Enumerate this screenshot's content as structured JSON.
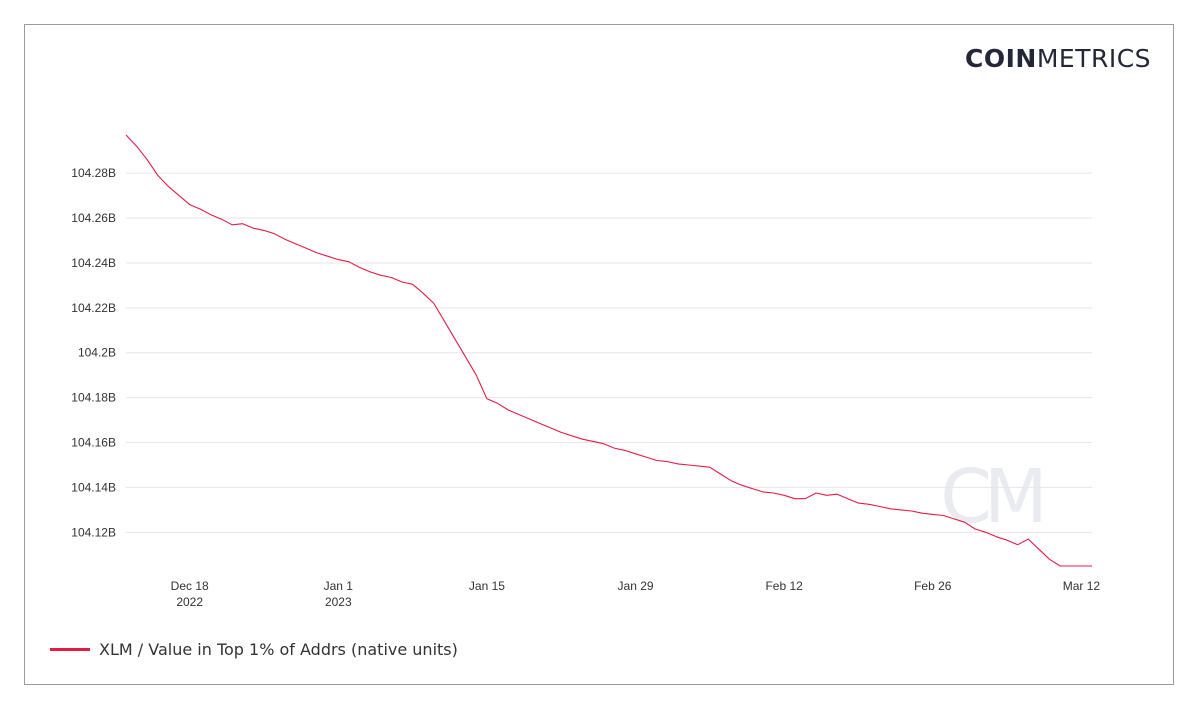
{
  "brand": {
    "logo_bold": "COIN",
    "logo_light": "METRICS",
    "watermark": "CM"
  },
  "legend": {
    "label": "XLM / Value in Top 1% of Addrs (native units)",
    "color": "#e41b47"
  },
  "chart_data": {
    "type": "line",
    "title": "",
    "xlabel": "",
    "ylabel": "",
    "ylim": [
      104.105,
      104.297
    ],
    "y_ticks": [
      {
        "value": 104.12,
        "label": "104.12B"
      },
      {
        "value": 104.14,
        "label": "104.14B"
      },
      {
        "value": 104.16,
        "label": "104.16B"
      },
      {
        "value": 104.18,
        "label": "104.18B"
      },
      {
        "value": 104.2,
        "label": "104.2B"
      },
      {
        "value": 104.22,
        "label": "104.22B"
      },
      {
        "value": 104.24,
        "label": "104.24B"
      },
      {
        "value": 104.26,
        "label": "104.26B"
      },
      {
        "value": 104.28,
        "label": "104.28B"
      }
    ],
    "x_ticks": [
      {
        "date": "2022-12-18",
        "label": "Dec 18",
        "sublabel": "2022"
      },
      {
        "date": "2023-01-01",
        "label": "Jan 1",
        "sublabel": "2023"
      },
      {
        "date": "2023-01-15",
        "label": "Jan 15",
        "sublabel": ""
      },
      {
        "date": "2023-01-29",
        "label": "Jan 29",
        "sublabel": ""
      },
      {
        "date": "2023-02-12",
        "label": "Feb 12",
        "sublabel": ""
      },
      {
        "date": "2023-02-26",
        "label": "Feb 26",
        "sublabel": ""
      },
      {
        "date": "2023-03-12",
        "label": "Mar 12",
        "sublabel": ""
      }
    ],
    "grid": true,
    "legend_position": "bottom-left",
    "series": [
      {
        "name": "XLM / Value in Top 1% of Addrs (native units)",
        "unit": "B",
        "color": "#e41b47",
        "x": [
          "2022-12-12",
          "2022-12-13",
          "2022-12-14",
          "2022-12-15",
          "2022-12-16",
          "2022-12-17",
          "2022-12-18",
          "2022-12-19",
          "2022-12-20",
          "2022-12-21",
          "2022-12-22",
          "2022-12-23",
          "2022-12-24",
          "2022-12-25",
          "2022-12-26",
          "2022-12-27",
          "2022-12-28",
          "2022-12-29",
          "2022-12-30",
          "2022-12-31",
          "2023-01-01",
          "2023-01-02",
          "2023-01-03",
          "2023-01-04",
          "2023-01-05",
          "2023-01-06",
          "2023-01-07",
          "2023-01-08",
          "2023-01-09",
          "2023-01-10",
          "2023-01-11",
          "2023-01-12",
          "2023-01-13",
          "2023-01-14",
          "2023-01-15",
          "2023-01-16",
          "2023-01-17",
          "2023-01-18",
          "2023-01-19",
          "2023-01-20",
          "2023-01-21",
          "2023-01-22",
          "2023-01-23",
          "2023-01-24",
          "2023-01-25",
          "2023-01-26",
          "2023-01-27",
          "2023-01-28",
          "2023-01-29",
          "2023-01-30",
          "2023-01-31",
          "2023-02-01",
          "2023-02-02",
          "2023-02-03",
          "2023-02-04",
          "2023-02-05",
          "2023-02-06",
          "2023-02-07",
          "2023-02-08",
          "2023-02-09",
          "2023-02-10",
          "2023-02-11",
          "2023-02-12",
          "2023-02-13",
          "2023-02-14",
          "2023-02-15",
          "2023-02-16",
          "2023-02-17",
          "2023-02-18",
          "2023-02-19",
          "2023-02-20",
          "2023-02-21",
          "2023-02-22",
          "2023-02-23",
          "2023-02-24",
          "2023-02-25",
          "2023-02-26",
          "2023-02-27",
          "2023-02-28",
          "2023-03-01",
          "2023-03-02",
          "2023-03-03",
          "2023-03-04",
          "2023-03-05",
          "2023-03-06",
          "2023-03-07",
          "2023-03-08",
          "2023-03-09",
          "2023-03-10",
          "2023-03-11",
          "2023-03-12",
          "2023-03-13"
        ],
        "values": [
          104.297,
          104.292,
          104.286,
          104.279,
          104.274,
          104.27,
          104.266,
          104.264,
          104.2615,
          104.2595,
          104.257,
          104.2575,
          104.2555,
          104.2545,
          104.253,
          104.2505,
          104.2485,
          104.2465,
          104.2445,
          104.243,
          104.2415,
          104.2405,
          104.238,
          104.236,
          104.2345,
          104.2335,
          104.2315,
          104.2305,
          104.2265,
          104.222,
          104.214,
          104.206,
          104.198,
          104.19,
          104.1795,
          104.1775,
          104.1745,
          104.1725,
          104.1705,
          104.1685,
          104.1665,
          104.1645,
          104.163,
          104.1615,
          104.1605,
          104.1595,
          104.1575,
          104.1565,
          104.155,
          104.1535,
          104.152,
          104.1515,
          104.1505,
          104.15,
          104.1495,
          104.149,
          104.146,
          104.143,
          104.141,
          104.1395,
          104.138,
          104.1375,
          104.1365,
          104.135,
          104.135,
          104.1375,
          104.1365,
          104.137,
          104.135,
          104.133,
          104.1325,
          104.1315,
          104.1305,
          104.13,
          104.1295,
          104.1285,
          104.128,
          104.1275,
          104.126,
          104.1245,
          104.1215,
          104.12,
          104.118,
          104.1165,
          104.1145,
          104.117,
          104.1125,
          104.108,
          104.105,
          104.105,
          104.105,
          104.105
        ]
      }
    ]
  }
}
